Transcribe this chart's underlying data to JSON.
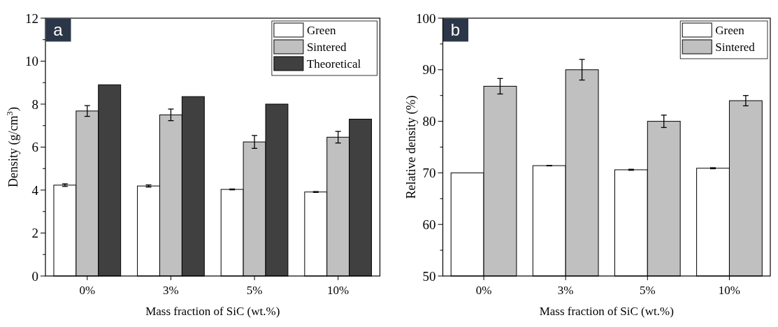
{
  "chart_data": [
    {
      "type": "bar",
      "title": "a",
      "xlabel": "Mass fraction of SiC (wt.%)",
      "ylabel": "Density (g/cm$^{3}$)",
      "categories": [
        "0%",
        "3%",
        "5%",
        "10%"
      ],
      "series": [
        {
          "name": "Green",
          "color": "#ffffff",
          "values": [
            4.23,
            4.19,
            4.03,
            3.91
          ],
          "errors": [
            0.06,
            0.05,
            0.02,
            0.02
          ]
        },
        {
          "name": "Sintered",
          "color": "#c0c0c0",
          "values": [
            7.68,
            7.5,
            6.24,
            6.46
          ],
          "errors": [
            0.25,
            0.27,
            0.3,
            0.27
          ]
        },
        {
          "name": "Theoretical",
          "color": "#404040",
          "values": [
            8.9,
            8.35,
            8.0,
            7.3
          ]
        }
      ],
      "ylim": [
        0,
        12
      ],
      "yticks": [
        0,
        {
          "value": 1,
          "label": null
        },
        2,
        {
          "value": 3,
          "label": null
        },
        4,
        {
          "value": 5,
          "label": null
        },
        6,
        {
          "value": 7,
          "label": null
        },
        8,
        {
          "value": 9,
          "label": null
        },
        10,
        {
          "value": 11,
          "label": null
        },
        12
      ],
      "grid": false,
      "legend": "top right"
    },
    {
      "type": "bar",
      "title": "b",
      "xlabel": "Mass fraction of SiC (wt.%)",
      "ylabel": "Relative density (%)",
      "categories": [
        "0%",
        "3%",
        "5%",
        "10%"
      ],
      "series": [
        {
          "name": "Green",
          "color": "#ffffff",
          "values": [
            70.0,
            71.4,
            70.6,
            70.9
          ],
          "errors": [
            null,
            0.05,
            0.1,
            0.1
          ]
        },
        {
          "name": "Sintered",
          "color": "#c0c0c0",
          "values": [
            86.8,
            90.0,
            80.0,
            84.0
          ],
          "errors": [
            1.5,
            2.0,
            1.2,
            1.0
          ]
        }
      ],
      "ylim": [
        50,
        100
      ],
      "yticks": [
        50,
        {
          "value": 55,
          "label": null
        },
        60,
        {
          "value": 65,
          "label": null
        },
        70,
        {
          "value": 75,
          "label": null
        },
        80,
        {
          "value": 85,
          "label": null
        },
        90,
        {
          "value": 95,
          "label": null
        },
        100
      ],
      "grid": false,
      "legend": "top right"
    }
  ]
}
